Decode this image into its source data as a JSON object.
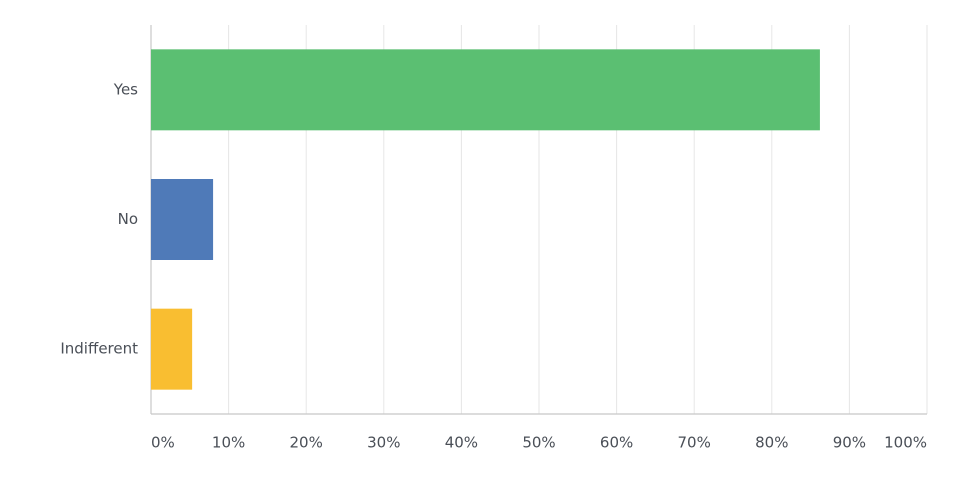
{
  "chart_data": {
    "type": "bar",
    "orientation": "horizontal",
    "categories": [
      "Yes",
      "No",
      "Indifferent"
    ],
    "values": [
      86.2,
      8.0,
      5.3
    ],
    "colors": [
      "#5bbf72",
      "#4f7ab8",
      "#f9be31"
    ],
    "xlim": [
      0,
      100
    ],
    "xticks": [
      {
        "value": 0,
        "label": "0%"
      },
      {
        "value": 10,
        "label": "10%"
      },
      {
        "value": 20,
        "label": "20%"
      },
      {
        "value": 30,
        "label": "30%"
      },
      {
        "value": 40,
        "label": "40%"
      },
      {
        "value": 50,
        "label": "50%"
      },
      {
        "value": 60,
        "label": "60%"
      },
      {
        "value": 70,
        "label": "70%"
      },
      {
        "value": 80,
        "label": "80%"
      },
      {
        "value": 90,
        "label": "90%"
      },
      {
        "value": 100,
        "label": "100%"
      }
    ],
    "grid": true
  }
}
